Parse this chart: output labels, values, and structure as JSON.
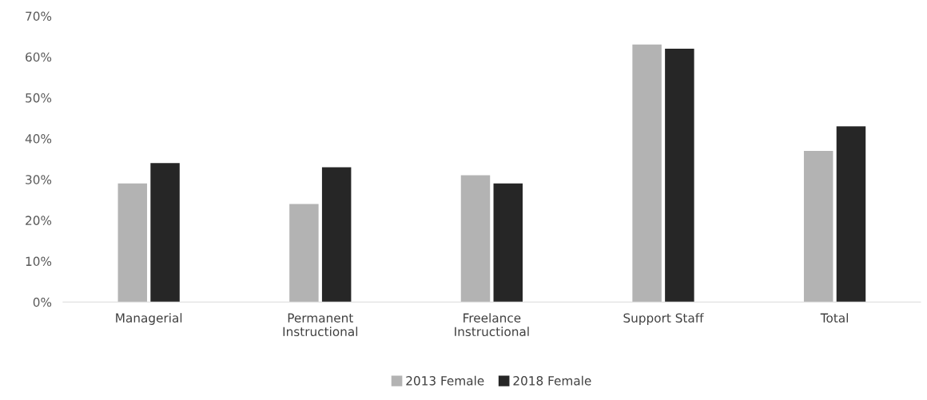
{
  "chart_data": {
    "type": "bar",
    "categories": [
      "Managerial",
      "Permanent\nInstructional",
      "Freelance\nInstructional",
      "Support Staff",
      "Total"
    ],
    "series": [
      {
        "name": "2013 Female",
        "color": "#b3b3b3",
        "values": [
          29,
          24,
          31,
          63,
          37
        ]
      },
      {
        "name": "2018 Female",
        "color": "#262626",
        "values": [
          34,
          33,
          29,
          62,
          43
        ]
      }
    ],
    "ylim": [
      0,
      70
    ],
    "yticks": [
      {
        "value": 0,
        "label": "0%"
      },
      {
        "value": 10,
        "label": "10%"
      },
      {
        "value": 20,
        "label": "20%"
      },
      {
        "value": 30,
        "label": "30%"
      },
      {
        "value": 40,
        "label": "40%"
      },
      {
        "value": 50,
        "label": "50%"
      },
      {
        "value": 60,
        "label": "60%"
      },
      {
        "value": 70,
        "label": "70%"
      }
    ],
    "grid": false,
    "legend": "bottom"
  }
}
